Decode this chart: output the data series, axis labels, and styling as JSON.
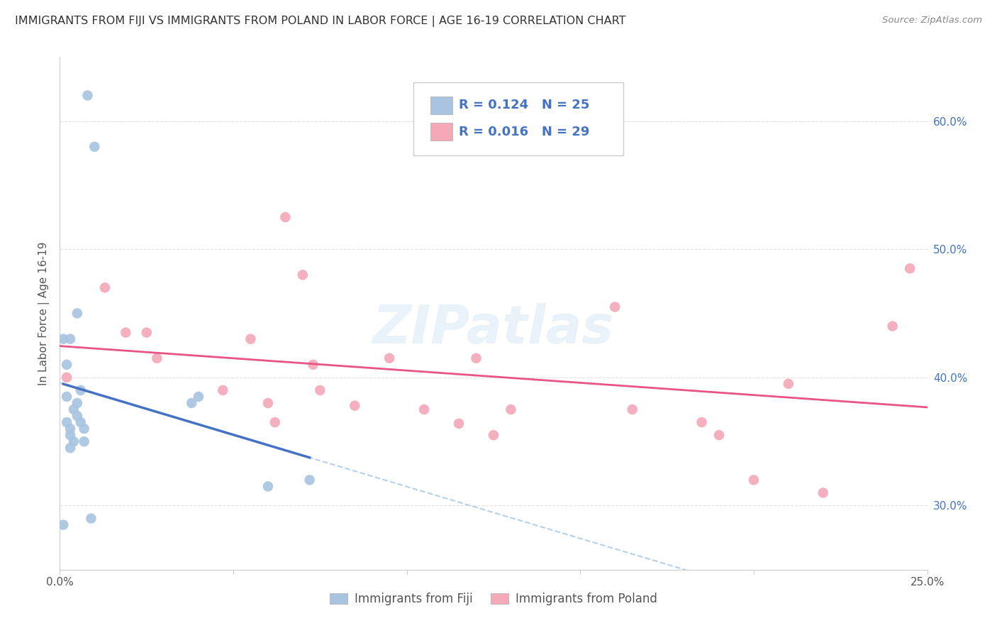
{
  "title": "IMMIGRANTS FROM FIJI VS IMMIGRANTS FROM POLAND IN LABOR FORCE | AGE 16-19 CORRELATION CHART",
  "source": "Source: ZipAtlas.com",
  "ylabel": "In Labor Force | Age 16-19",
  "xlim": [
    0.0,
    0.25
  ],
  "ylim": [
    0.25,
    0.65
  ],
  "yticks": [
    0.3,
    0.4,
    0.5,
    0.6
  ],
  "ytick_labels": [
    "30.0%",
    "40.0%",
    "50.0%",
    "60.0%"
  ],
  "xtick_labels": [
    "0.0%",
    "",
    "",
    "",
    "",
    "25.0%"
  ],
  "fiji_color": "#a8c4e0",
  "poland_color": "#f4a8b8",
  "fiji_line_color": "#4472c4",
  "poland_line_color": "#e85585",
  "dashed_line_color": "#a8c8e8",
  "fiji_R": "0.124",
  "fiji_N": "25",
  "poland_R": "0.016",
  "poland_N": "29",
  "fiji_x": [
    0.008,
    0.01,
    0.001,
    0.005,
    0.003,
    0.002,
    0.002,
    0.004,
    0.005,
    0.002,
    0.003,
    0.003,
    0.004,
    0.003,
    0.005,
    0.006,
    0.006,
    0.007,
    0.007,
    0.04,
    0.06,
    0.072,
    0.001,
    0.009,
    0.038
  ],
  "fiji_y": [
    0.62,
    0.58,
    0.43,
    0.45,
    0.43,
    0.41,
    0.385,
    0.375,
    0.37,
    0.365,
    0.36,
    0.355,
    0.35,
    0.345,
    0.38,
    0.39,
    0.365,
    0.36,
    0.35,
    0.385,
    0.315,
    0.32,
    0.285,
    0.29,
    0.38
  ],
  "poland_x": [
    0.002,
    0.013,
    0.019,
    0.025,
    0.028,
    0.047,
    0.055,
    0.06,
    0.062,
    0.065,
    0.07,
    0.073,
    0.075,
    0.085,
    0.095,
    0.105,
    0.115,
    0.12,
    0.125,
    0.13,
    0.16,
    0.165,
    0.185,
    0.19,
    0.2,
    0.21,
    0.22,
    0.24,
    0.245
  ],
  "poland_y": [
    0.4,
    0.47,
    0.435,
    0.435,
    0.415,
    0.39,
    0.43,
    0.38,
    0.365,
    0.525,
    0.48,
    0.41,
    0.39,
    0.378,
    0.415,
    0.375,
    0.364,
    0.415,
    0.355,
    0.375,
    0.455,
    0.375,
    0.365,
    0.355,
    0.32,
    0.395,
    0.31,
    0.44,
    0.485
  ],
  "watermark": "ZIPatlas",
  "legend_fiji_label": "Immigrants from Fiji",
  "legend_poland_label": "Immigrants from Poland",
  "background_color": "#ffffff",
  "grid_color": "#e0e0e0"
}
